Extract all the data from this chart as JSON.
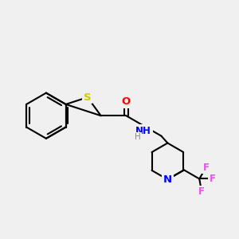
{
  "background_color": "#f0f0f0",
  "bond_color": "#000000",
  "bond_width": 1.5,
  "atom_colors": {
    "S": "#cccc00",
    "O": "#ff0000",
    "N": "#0000ff",
    "F": "#ff44ff",
    "C": "#000000"
  },
  "font_size": 8.5,
  "figsize": [
    3.0,
    3.0
  ],
  "dpi": 100
}
